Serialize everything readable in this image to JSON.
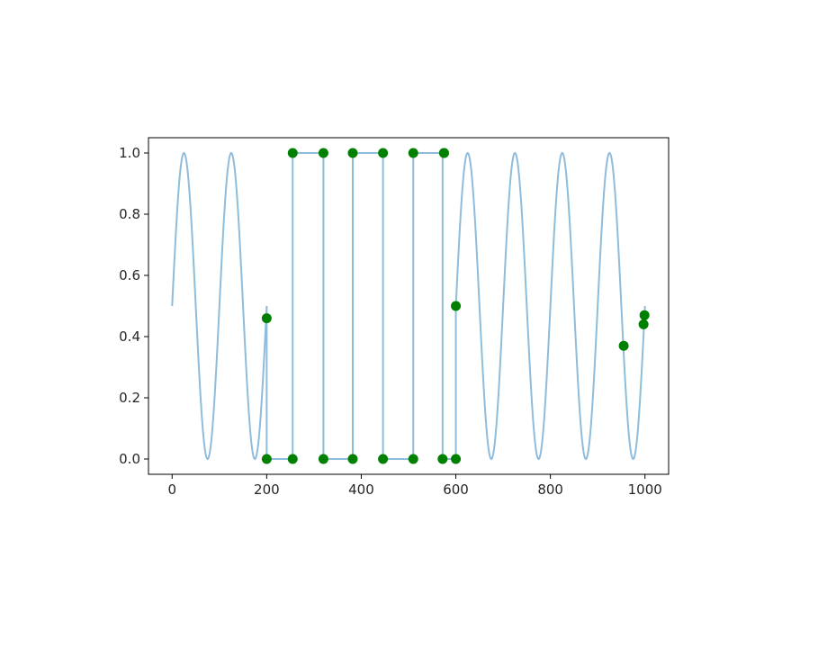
{
  "chart_data": {
    "type": "line",
    "title": "",
    "xlabel": "",
    "ylabel": "",
    "xlim": [
      -50,
      1050
    ],
    "ylim": [
      -0.05,
      1.05
    ],
    "xticks": [
      0,
      200,
      400,
      600,
      800,
      1000
    ],
    "xtick_labels": [
      "0",
      "200",
      "400",
      "600",
      "800",
      "1000"
    ],
    "yticks": [
      0.0,
      0.2,
      0.4,
      0.6,
      0.8,
      1.0
    ],
    "ytick_labels": [
      "0.0",
      "0.2",
      "0.4",
      "0.6",
      "0.8",
      "1.0"
    ],
    "grid": false,
    "line_series": {
      "color": "#8fbcdc",
      "description": "0.5 + 0.5*sin(2*pi*x/100) with square-wave segment between x=200 and x=600",
      "segments": [
        {
          "type": "sine",
          "x": [
            0,
            200
          ],
          "amplitude": 0.5,
          "offset": 0.5,
          "period": 100
        },
        {
          "type": "points",
          "x": [
            200,
            200,
            255,
            255,
            320,
            320,
            382,
            382,
            446,
            446,
            510,
            510,
            572,
            572,
            600,
            600
          ],
          "y": [
            0.46,
            0.0,
            0.0,
            1.0,
            1.0,
            0.0,
            0.0,
            1.0,
            1.0,
            0.0,
            0.0,
            1.0,
            1.0,
            0.0,
            0.0,
            0.5
          ]
        },
        {
          "type": "sine",
          "x": [
            600,
            1000
          ],
          "amplitude": 0.5,
          "offset": 0.5,
          "period": 100
        }
      ]
    },
    "scatter_series": {
      "color": "#008000",
      "x": [
        200,
        200,
        255,
        255,
        320,
        320,
        382,
        382,
        446,
        446,
        510,
        510,
        572,
        575,
        575,
        600,
        600,
        955,
        997,
        999
      ],
      "y": [
        0.46,
        0.0,
        0.0,
        1.0,
        1.0,
        0.0,
        0.0,
        1.0,
        1.0,
        0.0,
        0.0,
        1.0,
        0.0,
        1.0,
        1.0,
        0.0,
        0.5,
        0.37,
        0.44,
        0.47
      ]
    }
  }
}
